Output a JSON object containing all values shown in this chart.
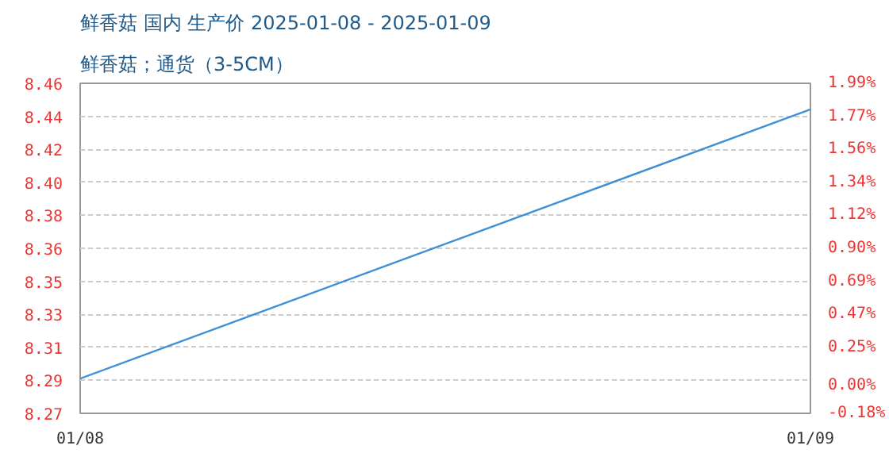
{
  "chart_data": {
    "type": "line",
    "title": "鲜香菇 国内 生产价 2025-01-08 - 2025-01-09",
    "subtitle": "鲜香菇；通货（3-5CM）",
    "x": [
      "2025-01-08",
      "2025-01-09"
    ],
    "xlim": [
      "2025-01-08",
      "2025-01-09"
    ],
    "xticks": [
      {
        "value": "2025-01-08",
        "label": "01/08"
      },
      {
        "value": "2025-01-09",
        "label": "01/09"
      }
    ],
    "series": [
      {
        "color": "#3d8fd6",
        "values": [
          8.29,
          8.445
        ]
      }
    ],
    "ylim": [
      8.27,
      8.46
    ],
    "yticks": [
      {
        "value": 8.27,
        "label": "8.27"
      },
      {
        "value": 8.289,
        "label": "8.29"
      },
      {
        "value": 8.308,
        "label": "8.31"
      },
      {
        "value": 8.327,
        "label": "8.33"
      },
      {
        "value": 8.346,
        "label": "8.35"
      },
      {
        "value": 8.365,
        "label": "8.36"
      },
      {
        "value": 8.384,
        "label": "8.38"
      },
      {
        "value": 8.403,
        "label": "8.40"
      },
      {
        "value": 8.422,
        "label": "8.42"
      },
      {
        "value": 8.441,
        "label": "8.44"
      },
      {
        "value": 8.46,
        "label": "8.46"
      }
    ],
    "y2lim": [
      -0.18,
      1.99
    ],
    "y2ticks": [
      {
        "value": -0.18,
        "label": "-0.18%"
      },
      {
        "value": 0,
        "label": "0.00%"
      },
      {
        "value": 0.254,
        "label": "0.25%"
      },
      {
        "value": 0.471,
        "label": "0.47%"
      },
      {
        "value": 0.688,
        "label": "0.69%"
      },
      {
        "value": 0.905,
        "label": "0.90%"
      },
      {
        "value": 1.122,
        "label": "1.12%"
      },
      {
        "value": 1.339,
        "label": "1.34%"
      },
      {
        "value": 1.556,
        "label": "1.56%"
      },
      {
        "value": 1.773,
        "label": "1.77%"
      },
      {
        "value": 1.99,
        "label": "1.99%"
      }
    ],
    "grid": "y",
    "line_style": "solid"
  }
}
